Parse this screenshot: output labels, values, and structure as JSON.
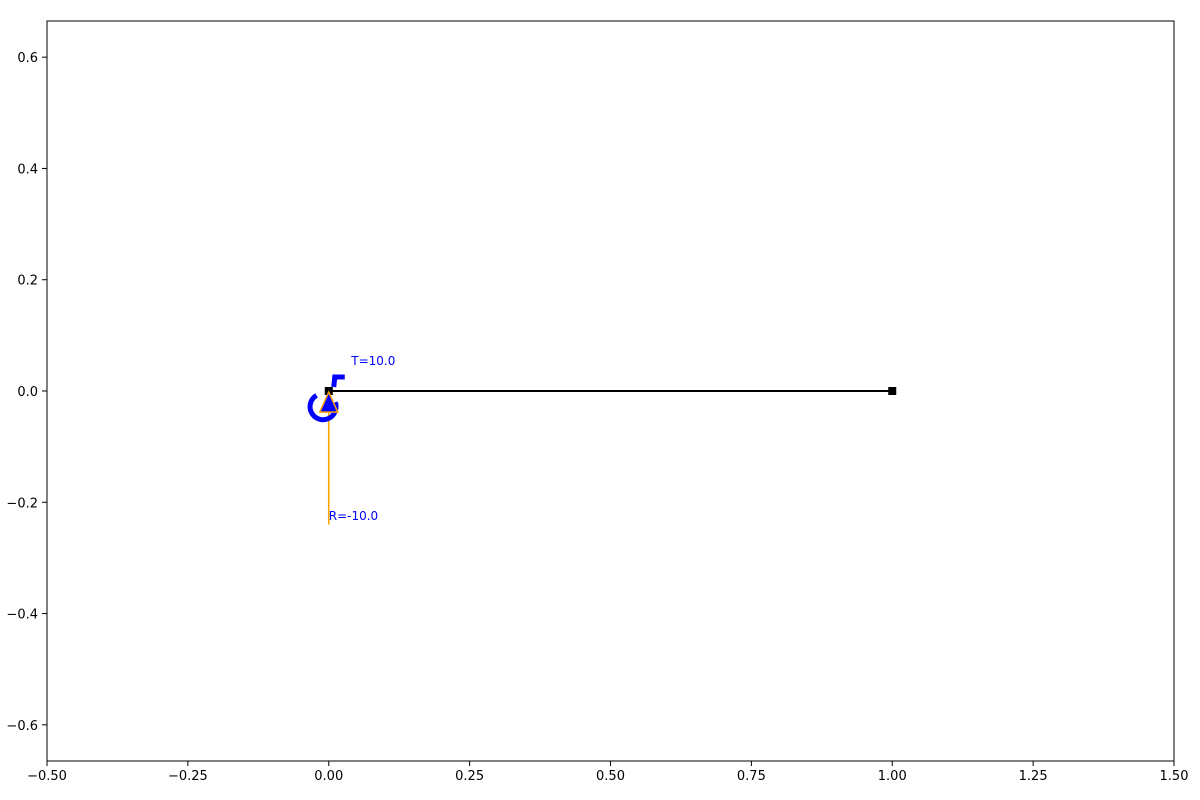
{
  "chart_data": {
    "type": "scatter",
    "title": "",
    "xlabel": "",
    "ylabel": "",
    "xlim": [
      -0.5,
      1.5
    ],
    "ylim": [
      -0.665,
      0.665
    ],
    "x_ticks": [
      -0.5,
      -0.25,
      0.0,
      0.25,
      0.5,
      0.75,
      1.0,
      1.25,
      1.5
    ],
    "x_tick_labels": [
      "−0.50",
      "−0.25",
      "0.00",
      "0.25",
      "0.50",
      "0.75",
      "1.00",
      "1.25",
      "1.50"
    ],
    "y_ticks": [
      0.6,
      0.4,
      0.2,
      0.0,
      -0.2,
      -0.4,
      -0.6
    ],
    "y_tick_labels": [
      "0.6",
      "0.4",
      "0.2",
      "0.0",
      "−0.2",
      "−0.4",
      "−0.6"
    ],
    "grid": false,
    "beam": {
      "x": [
        0.0,
        1.0
      ],
      "y": [
        0.0,
        0.0
      ],
      "color": "#000000",
      "node_marker": "square"
    },
    "support": {
      "x": 0.0,
      "y": -0.02,
      "marker": "triangle",
      "fill": "#0000ff",
      "edge": "#ffa500"
    },
    "torque": {
      "x": 0.0,
      "y": 0.0,
      "value": 10.0,
      "label": "T=10.0",
      "label_x": 0.04,
      "label_y": 0.047,
      "color": "#0000ff"
    },
    "reaction": {
      "x": 0.0,
      "y_from": 0.0,
      "y_to": -0.24,
      "value": -10.0,
      "label": "R=-10.0",
      "label_x": 0.0,
      "label_y": -0.232,
      "color": "#ffa500",
      "label_color": "#0000ff"
    }
  }
}
